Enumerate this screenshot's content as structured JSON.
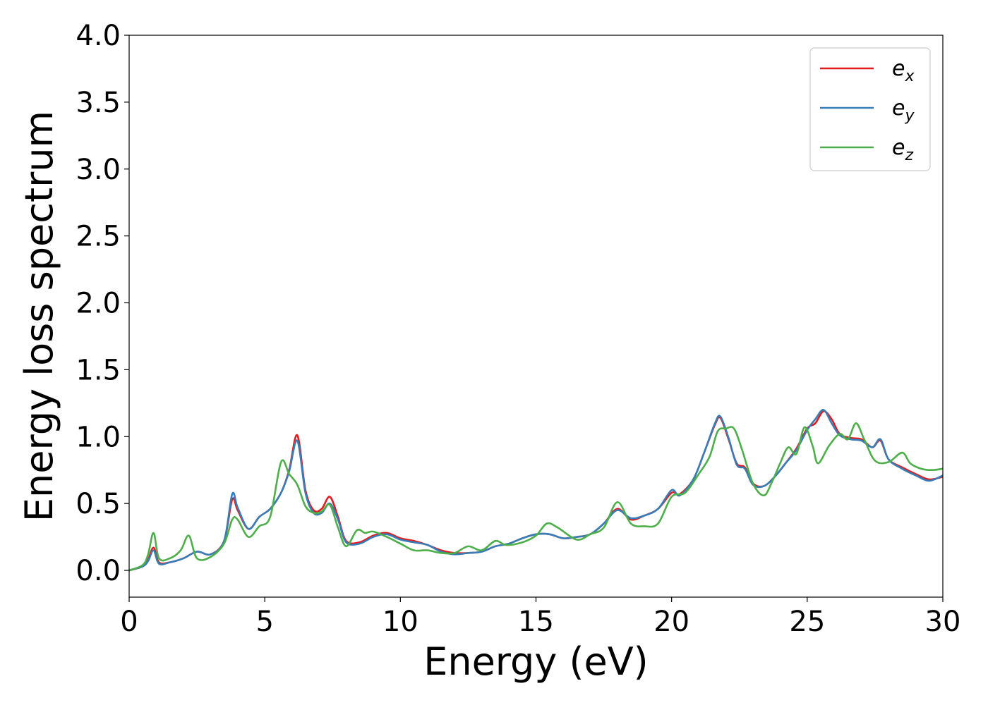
{
  "chart_data": {
    "type": "line",
    "title": "",
    "xlabel": "Energy (eV)",
    "ylabel": "Energy loss spectrum",
    "xlim": [
      0,
      30
    ],
    "ylim": [
      -0.2,
      4.0
    ],
    "xticks": [
      0,
      5,
      10,
      15,
      20,
      25,
      30
    ],
    "xtick_labels": [
      "0",
      "5",
      "10",
      "15",
      "20",
      "25",
      "30"
    ],
    "yticks": [
      0.0,
      0.5,
      1.0,
      1.5,
      2.0,
      2.5,
      3.0,
      3.5,
      4.0
    ],
    "ytick_labels": [
      "0.0",
      "0.5",
      "1.0",
      "1.5",
      "2.0",
      "2.5",
      "3.0",
      "3.5",
      "4.0"
    ],
    "grid": false,
    "legend_position": "top-right",
    "series": [
      {
        "name": "e_x",
        "label_base": "e",
        "label_sub": "x",
        "color": "#e41a1c",
        "points": [
          [
            0,
            0.0
          ],
          [
            0.5,
            0.03
          ],
          [
            0.7,
            0.08
          ],
          [
            0.9,
            0.17
          ],
          [
            1.1,
            0.06
          ],
          [
            1.5,
            0.06
          ],
          [
            2.0,
            0.09
          ],
          [
            2.5,
            0.14
          ],
          [
            3.0,
            0.12
          ],
          [
            3.5,
            0.22
          ],
          [
            3.8,
            0.53
          ],
          [
            4.0,
            0.45
          ],
          [
            4.4,
            0.31
          ],
          [
            4.8,
            0.4
          ],
          [
            5.2,
            0.46
          ],
          [
            5.6,
            0.58
          ],
          [
            5.9,
            0.75
          ],
          [
            6.2,
            1.01
          ],
          [
            6.5,
            0.6
          ],
          [
            6.8,
            0.45
          ],
          [
            7.1,
            0.46
          ],
          [
            7.4,
            0.55
          ],
          [
            7.7,
            0.4
          ],
          [
            8.0,
            0.22
          ],
          [
            8.5,
            0.21
          ],
          [
            9.0,
            0.26
          ],
          [
            9.5,
            0.28
          ],
          [
            10.0,
            0.24
          ],
          [
            10.5,
            0.22
          ],
          [
            11.0,
            0.19
          ],
          [
            11.5,
            0.15
          ],
          [
            12.0,
            0.13
          ],
          [
            12.5,
            0.13
          ],
          [
            13.0,
            0.14
          ],
          [
            13.5,
            0.18
          ],
          [
            14.0,
            0.2
          ],
          [
            14.5,
            0.24
          ],
          [
            15.0,
            0.27
          ],
          [
            15.5,
            0.27
          ],
          [
            16.0,
            0.24
          ],
          [
            16.5,
            0.25
          ],
          [
            17.0,
            0.27
          ],
          [
            17.5,
            0.35
          ],
          [
            18.0,
            0.46
          ],
          [
            18.5,
            0.38
          ],
          [
            19.0,
            0.41
          ],
          [
            19.5,
            0.46
          ],
          [
            20.0,
            0.58
          ],
          [
            20.3,
            0.57
          ],
          [
            20.8,
            0.68
          ],
          [
            21.2,
            0.88
          ],
          [
            21.6,
            1.09
          ],
          [
            21.8,
            1.14
          ],
          [
            22.1,
            0.98
          ],
          [
            22.4,
            0.8
          ],
          [
            22.7,
            0.77
          ],
          [
            23.0,
            0.65
          ],
          [
            23.4,
            0.63
          ],
          [
            23.8,
            0.7
          ],
          [
            24.2,
            0.8
          ],
          [
            24.6,
            0.91
          ],
          [
            25.0,
            1.06
          ],
          [
            25.3,
            1.1
          ],
          [
            25.6,
            1.19
          ],
          [
            25.9,
            1.13
          ],
          [
            26.2,
            1.02
          ],
          [
            26.6,
            0.99
          ],
          [
            27.0,
            0.98
          ],
          [
            27.4,
            0.92
          ],
          [
            27.7,
            0.97
          ],
          [
            28.0,
            0.83
          ],
          [
            28.5,
            0.77
          ],
          [
            29.0,
            0.72
          ],
          [
            29.5,
            0.68
          ],
          [
            30.0,
            0.7
          ]
        ]
      },
      {
        "name": "e_y",
        "label_base": "e",
        "label_sub": "y",
        "color": "#377eb8",
        "points": [
          [
            0,
            0.0
          ],
          [
            0.5,
            0.03
          ],
          [
            0.7,
            0.07
          ],
          [
            0.9,
            0.15
          ],
          [
            1.1,
            0.05
          ],
          [
            1.5,
            0.06
          ],
          [
            2.0,
            0.09
          ],
          [
            2.5,
            0.14
          ],
          [
            3.0,
            0.12
          ],
          [
            3.5,
            0.22
          ],
          [
            3.8,
            0.57
          ],
          [
            4.0,
            0.47
          ],
          [
            4.4,
            0.31
          ],
          [
            4.8,
            0.4
          ],
          [
            5.2,
            0.46
          ],
          [
            5.6,
            0.58
          ],
          [
            5.9,
            0.74
          ],
          [
            6.2,
            0.97
          ],
          [
            6.5,
            0.58
          ],
          [
            6.8,
            0.43
          ],
          [
            7.1,
            0.43
          ],
          [
            7.4,
            0.5
          ],
          [
            7.7,
            0.38
          ],
          [
            8.0,
            0.21
          ],
          [
            8.5,
            0.2
          ],
          [
            9.0,
            0.25
          ],
          [
            9.5,
            0.27
          ],
          [
            10.0,
            0.23
          ],
          [
            10.5,
            0.21
          ],
          [
            11.0,
            0.19
          ],
          [
            11.5,
            0.14
          ],
          [
            12.0,
            0.12
          ],
          [
            12.5,
            0.13
          ],
          [
            13.0,
            0.14
          ],
          [
            13.5,
            0.18
          ],
          [
            14.0,
            0.2
          ],
          [
            14.5,
            0.24
          ],
          [
            15.0,
            0.27
          ],
          [
            15.5,
            0.27
          ],
          [
            16.0,
            0.24
          ],
          [
            16.5,
            0.25
          ],
          [
            17.0,
            0.27
          ],
          [
            17.5,
            0.35
          ],
          [
            18.0,
            0.45
          ],
          [
            18.5,
            0.39
          ],
          [
            19.0,
            0.41
          ],
          [
            19.5,
            0.46
          ],
          [
            20.0,
            0.6
          ],
          [
            20.3,
            0.56
          ],
          [
            20.8,
            0.68
          ],
          [
            21.2,
            0.88
          ],
          [
            21.6,
            1.1
          ],
          [
            21.8,
            1.15
          ],
          [
            22.1,
            0.99
          ],
          [
            22.4,
            0.79
          ],
          [
            22.7,
            0.76
          ],
          [
            23.0,
            0.64
          ],
          [
            23.4,
            0.63
          ],
          [
            23.8,
            0.7
          ],
          [
            24.2,
            0.8
          ],
          [
            24.6,
            0.9
          ],
          [
            25.0,
            1.05
          ],
          [
            25.3,
            1.13
          ],
          [
            25.6,
            1.2
          ],
          [
            25.9,
            1.1
          ],
          [
            26.2,
            1.01
          ],
          [
            26.6,
            0.98
          ],
          [
            27.0,
            0.97
          ],
          [
            27.4,
            0.92
          ],
          [
            27.7,
            0.98
          ],
          [
            28.0,
            0.83
          ],
          [
            28.5,
            0.76
          ],
          [
            29.0,
            0.71
          ],
          [
            29.5,
            0.67
          ],
          [
            30.0,
            0.71
          ]
        ]
      },
      {
        "name": "e_z",
        "label_base": "e",
        "label_sub": "z",
        "color": "#4daf4a",
        "points": [
          [
            0,
            0.0
          ],
          [
            0.5,
            0.04
          ],
          [
            0.7,
            0.12
          ],
          [
            0.9,
            0.28
          ],
          [
            1.1,
            0.09
          ],
          [
            1.5,
            0.09
          ],
          [
            1.9,
            0.15
          ],
          [
            2.2,
            0.26
          ],
          [
            2.5,
            0.09
          ],
          [
            3.0,
            0.1
          ],
          [
            3.5,
            0.2
          ],
          [
            3.8,
            0.38
          ],
          [
            4.0,
            0.38
          ],
          [
            4.4,
            0.25
          ],
          [
            4.8,
            0.33
          ],
          [
            5.2,
            0.4
          ],
          [
            5.6,
            0.81
          ],
          [
            5.9,
            0.72
          ],
          [
            6.2,
            0.64
          ],
          [
            6.5,
            0.48
          ],
          [
            6.8,
            0.43
          ],
          [
            7.1,
            0.44
          ],
          [
            7.4,
            0.49
          ],
          [
            7.7,
            0.32
          ],
          [
            8.0,
            0.18
          ],
          [
            8.4,
            0.3
          ],
          [
            8.7,
            0.28
          ],
          [
            9.0,
            0.29
          ],
          [
            9.5,
            0.25
          ],
          [
            10.0,
            0.2
          ],
          [
            10.5,
            0.15
          ],
          [
            11.0,
            0.15
          ],
          [
            11.5,
            0.13
          ],
          [
            12.0,
            0.13
          ],
          [
            12.5,
            0.18
          ],
          [
            13.0,
            0.15
          ],
          [
            13.5,
            0.22
          ],
          [
            13.9,
            0.19
          ],
          [
            14.5,
            0.21
          ],
          [
            15.0,
            0.26
          ],
          [
            15.4,
            0.35
          ],
          [
            15.8,
            0.32
          ],
          [
            16.5,
            0.23
          ],
          [
            17.0,
            0.27
          ],
          [
            17.5,
            0.32
          ],
          [
            18.0,
            0.51
          ],
          [
            18.5,
            0.35
          ],
          [
            19.0,
            0.33
          ],
          [
            19.5,
            0.35
          ],
          [
            20.0,
            0.55
          ],
          [
            20.5,
            0.58
          ],
          [
            21.0,
            0.72
          ],
          [
            21.4,
            0.85
          ],
          [
            21.7,
            1.04
          ],
          [
            22.0,
            1.06
          ],
          [
            22.3,
            1.06
          ],
          [
            22.6,
            0.9
          ],
          [
            23.0,
            0.65
          ],
          [
            23.4,
            0.56
          ],
          [
            23.7,
            0.66
          ],
          [
            24.0,
            0.8
          ],
          [
            24.3,
            0.92
          ],
          [
            24.6,
            0.87
          ],
          [
            24.9,
            1.07
          ],
          [
            25.2,
            0.93
          ],
          [
            25.4,
            0.8
          ],
          [
            25.8,
            0.93
          ],
          [
            26.2,
            1.02
          ],
          [
            26.5,
            0.98
          ],
          [
            26.8,
            1.1
          ],
          [
            27.1,
            0.98
          ],
          [
            27.5,
            0.82
          ],
          [
            28.0,
            0.81
          ],
          [
            28.5,
            0.88
          ],
          [
            28.8,
            0.8
          ],
          [
            29.2,
            0.76
          ],
          [
            29.6,
            0.75
          ],
          [
            30.0,
            0.76
          ]
        ]
      }
    ]
  }
}
